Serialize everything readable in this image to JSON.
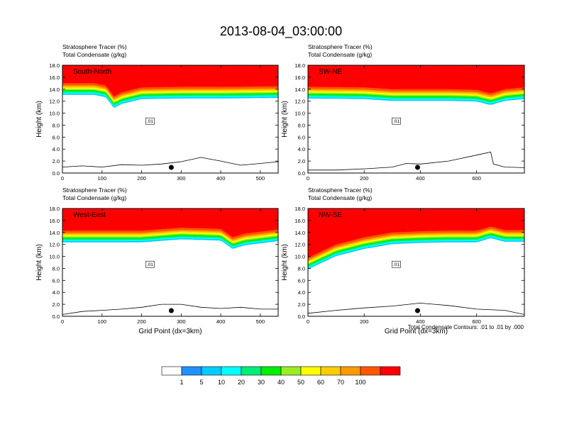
{
  "figure": {
    "title": "2013-08-04_03:00:00",
    "contour_note": "Total Condensate Contours: .01 to .01 by .000"
  },
  "colorbar": {
    "labels": [
      "1",
      "5",
      "10",
      "20",
      "30",
      "40",
      "50",
      "60",
      "70",
      "100"
    ],
    "colors": [
      "#ffffff",
      "#1e90ff",
      "#00ccff",
      "#00ffff",
      "#00ee77",
      "#00ee00",
      "#99ee22",
      "#ffff00",
      "#ffcc00",
      "#ff9900",
      "#ff5500",
      "#ff0000"
    ]
  },
  "chart_data": [
    {
      "type": "heatmap",
      "panel": "South-North",
      "title_line1": "Stratosphere Tracer   (%)",
      "title_line2": "Total Condensate   (g/kg)",
      "xlabel": "",
      "ylabel": "Height (km)",
      "xlim": [
        0,
        545
      ],
      "ylim": [
        0,
        18
      ],
      "xticks": [
        0,
        100,
        200,
        300,
        400,
        500
      ],
      "yticks": [
        "0.0",
        "2.0",
        "4.0",
        "6.0",
        "8.0",
        "10.0",
        "12.0",
        "14.0",
        "16.0",
        "18.0"
      ],
      "tropopause_km": [
        [
          0,
          15.0
        ],
        [
          80,
          15.0
        ],
        [
          110,
          14.6
        ],
        [
          130,
          12.8
        ],
        [
          150,
          13.5
        ],
        [
          200,
          14.3
        ],
        [
          300,
          14.4
        ],
        [
          400,
          14.4
        ],
        [
          545,
          14.5
        ]
      ],
      "terrain_km": [
        [
          0,
          1.0
        ],
        [
          50,
          1.2
        ],
        [
          100,
          1.0
        ],
        [
          150,
          1.4
        ],
        [
          200,
          1.3
        ],
        [
          250,
          1.5
        ],
        [
          300,
          1.9
        ],
        [
          350,
          2.6
        ],
        [
          400,
          2.0
        ],
        [
          450,
          1.3
        ],
        [
          500,
          1.6
        ],
        [
          545,
          1.9
        ]
      ],
      "contour_label": ".01",
      "dot_x": 275
    },
    {
      "type": "heatmap",
      "panel": "SW-NE",
      "title_line1": "Stratosphere Tracer   (%)",
      "title_line2": "Total Condensate   (g/kg)",
      "xlabel": "",
      "ylabel": "Height (km)",
      "xlim": [
        0,
        770
      ],
      "ylim": [
        0,
        18
      ],
      "xticks": [
        0,
        200,
        400,
        600
      ],
      "yticks": [
        "0.0",
        "2.0",
        "4.0",
        "6.0",
        "8.0",
        "10.0",
        "12.0",
        "14.0",
        "16.0",
        "18.0"
      ],
      "tropopause_km": [
        [
          0,
          14.4
        ],
        [
          200,
          14.3
        ],
        [
          300,
          14.0
        ],
        [
          400,
          14.0
        ],
        [
          500,
          14.0
        ],
        [
          600,
          13.9
        ],
        [
          650,
          13.3
        ],
        [
          700,
          14.0
        ],
        [
          770,
          14.3
        ]
      ],
      "terrain_km": [
        [
          0,
          0.5
        ],
        [
          100,
          0.5
        ],
        [
          200,
          0.7
        ],
        [
          300,
          1.0
        ],
        [
          350,
          1.6
        ],
        [
          400,
          1.5
        ],
        [
          500,
          2.0
        ],
        [
          600,
          3.0
        ],
        [
          650,
          3.5
        ],
        [
          660,
          1.5
        ],
        [
          700,
          1.0
        ],
        [
          770,
          0.9
        ]
      ],
      "contour_label": ".01",
      "dot_x": 390
    },
    {
      "type": "heatmap",
      "panel": "West-East",
      "title_line1": "Stratosphere Tracer   (%)",
      "title_line2": "Total Condensate   (g/kg)",
      "xlabel": "Grid Point (dx=3km)",
      "ylabel": "Height (km)",
      "xlim": [
        0,
        545
      ],
      "ylim": [
        0,
        18
      ],
      "xticks": [
        0,
        100,
        200,
        300,
        400,
        500
      ],
      "yticks": [
        "0.0",
        "2.0",
        "4.0",
        "6.0",
        "8.0",
        "10.0",
        "12.0",
        "14.0",
        "16.0",
        "18.0"
      ],
      "tropopause_km": [
        [
          0,
          14.3
        ],
        [
          200,
          14.3
        ],
        [
          300,
          14.8
        ],
        [
          400,
          14.6
        ],
        [
          430,
          13.2
        ],
        [
          460,
          13.8
        ],
        [
          545,
          14.5
        ]
      ],
      "terrain_km": [
        [
          0,
          0.3
        ],
        [
          50,
          0.8
        ],
        [
          100,
          1.0
        ],
        [
          150,
          1.2
        ],
        [
          200,
          1.5
        ],
        [
          250,
          2.0
        ],
        [
          300,
          2.0
        ],
        [
          350,
          1.5
        ],
        [
          400,
          1.3
        ],
        [
          450,
          1.5
        ],
        [
          500,
          1.2
        ],
        [
          545,
          1.2
        ]
      ],
      "contour_label": ".01",
      "dot_x": 275
    },
    {
      "type": "heatmap",
      "panel": "NW-SE",
      "title_line1": "Stratosphere Tracer   (%)",
      "title_line2": "Total Condensate   (g/kg)",
      "xlabel": "Grid Point (dx=3km)",
      "ylabel": "Height (km)",
      "xlim": [
        0,
        770
      ],
      "ylim": [
        0,
        18
      ],
      "xticks": [
        0,
        200,
        400,
        600
      ],
      "yticks": [
        "0.0",
        "2.0",
        "4.0",
        "6.0",
        "8.0",
        "10.0",
        "12.0",
        "14.0",
        "16.0",
        "18.0"
      ],
      "tropopause_km": [
        [
          0,
          9.8
        ],
        [
          100,
          12.0
        ],
        [
          200,
          13.2
        ],
        [
          300,
          14.0
        ],
        [
          400,
          14.2
        ],
        [
          500,
          14.3
        ],
        [
          600,
          14.3
        ],
        [
          650,
          15.0
        ],
        [
          700,
          14.4
        ],
        [
          770,
          14.4
        ]
      ],
      "terrain_km": [
        [
          0,
          0.5
        ],
        [
          100,
          1.0
        ],
        [
          200,
          1.4
        ],
        [
          300,
          1.7
        ],
        [
          400,
          2.2
        ],
        [
          450,
          2.0
        ],
        [
          500,
          1.8
        ],
        [
          600,
          1.2
        ],
        [
          700,
          1.0
        ],
        [
          770,
          0.3
        ]
      ],
      "contour_label": ".01",
      "dot_x": 390
    }
  ]
}
